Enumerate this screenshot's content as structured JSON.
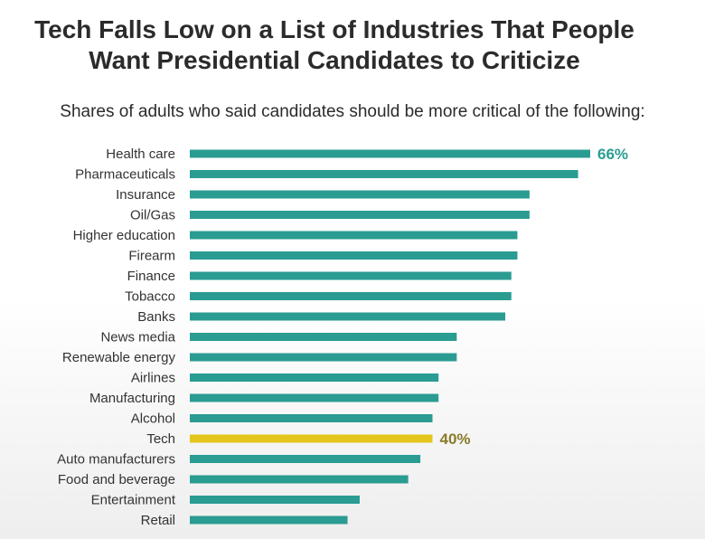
{
  "title_line1": "Tech Falls Low on a List of Industries That People",
  "title_line2": "Want Presidential Candidates to Criticize",
  "subtitle": "Shares of adults who said candidates should be more critical of the following:",
  "colors": {
    "bar": "#2a9c92",
    "highlight": "#e3c619",
    "label_top": "#2a9c92",
    "label_highlight": "#8a7a2a"
  },
  "chart_data": {
    "type": "bar",
    "orientation": "horizontal",
    "categories": [
      "Health care",
      "Pharmaceuticals",
      "Insurance",
      "Oil/Gas",
      "Higher education",
      "Firearm",
      "Finance",
      "Tobacco",
      "Banks",
      "News media",
      "Renewable energy",
      "Airlines",
      "Manufacturing",
      "Alcohol",
      "Tech",
      "Auto manufacturers",
      "Food and beverage",
      "Entertainment",
      "Retail"
    ],
    "values": [
      66,
      64,
      56,
      56,
      54,
      54,
      53,
      53,
      52,
      44,
      44,
      41,
      41,
      40,
      40,
      38,
      36,
      28,
      26
    ],
    "highlight": "Tech",
    "data_labels": [
      {
        "category": "Health care",
        "text": "66%"
      },
      {
        "category": "Tech",
        "text": "40%"
      }
    ],
    "title": "Tech Falls Low on a List of Industries That People Want Presidential Candidates to Criticize",
    "subtitle": "Shares of adults who said candidates should be more critical of the following:",
    "xlabel": "",
    "ylabel": "",
    "xlim": [
      0,
      66
    ],
    "grid": false
  }
}
